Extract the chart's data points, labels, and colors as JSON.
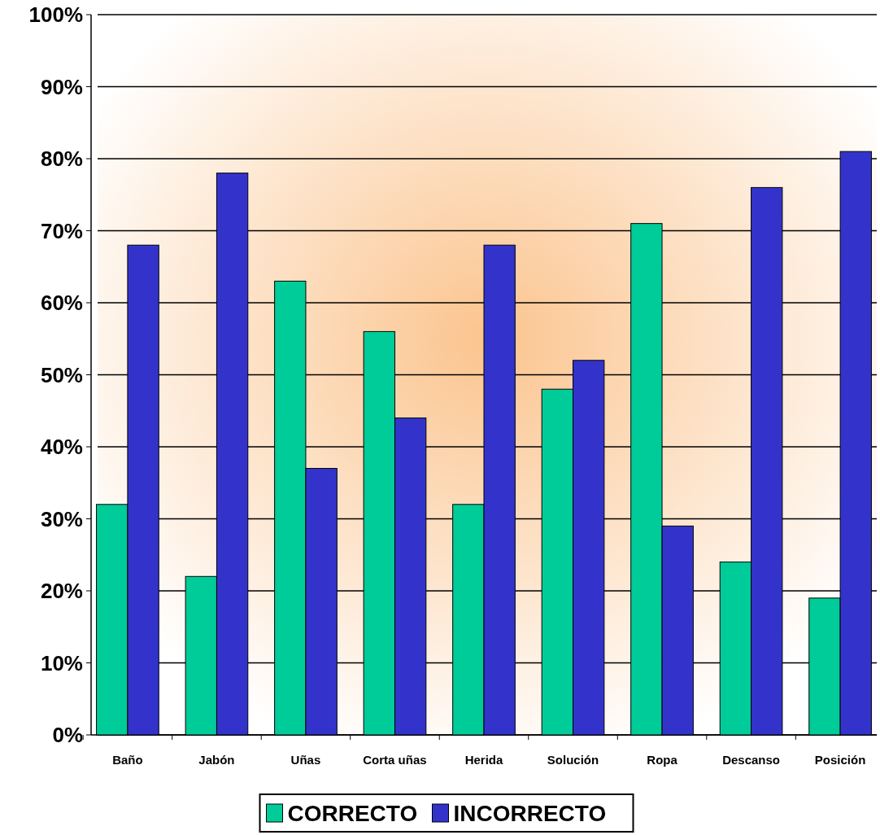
{
  "chart_data": {
    "type": "bar",
    "categories": [
      "Baño",
      "Jabón",
      "Uñas",
      "Corta uñas",
      "Herida",
      "Solución",
      "Ropa",
      "Descanso",
      "Posición"
    ],
    "series": [
      {
        "name": "CORRECTO",
        "color": "#00cc99",
        "values": [
          32,
          22,
          63,
          56,
          32,
          48,
          71,
          24,
          19
        ]
      },
      {
        "name": "INCORRECTO",
        "color": "#3333cc",
        "values": [
          68,
          78,
          37,
          44,
          68,
          52,
          29,
          76,
          81
        ]
      }
    ],
    "ylim": [
      0,
      100
    ],
    "yticks": [
      {
        "value": 0,
        "label": "0%"
      },
      {
        "value": 10,
        "label": "10%"
      },
      {
        "value": 20,
        "label": "20%"
      },
      {
        "value": 30,
        "label": "30%"
      },
      {
        "value": 40,
        "label": "40%"
      },
      {
        "value": 50,
        "label": "50%"
      },
      {
        "value": 60,
        "label": "60%"
      },
      {
        "value": 70,
        "label": "70%"
      },
      {
        "value": 80,
        "label": "80%"
      },
      {
        "value": 90,
        "label": "90%"
      },
      {
        "value": 100,
        "label": "100%"
      }
    ],
    "grid": "y",
    "legend": "bottom"
  }
}
